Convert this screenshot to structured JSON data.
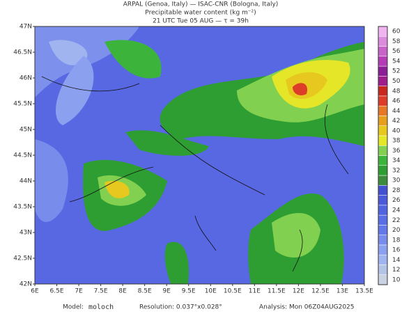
{
  "header": {
    "line1": "ARPAL (Genoa, Italy)  —  ISAC-CNR (Bologna, Italy)",
    "line2": "Precipitable water content (kg m⁻²)",
    "line3": "21 UTC Tue 05 AUG  —  τ = 39h"
  },
  "map": {
    "lat_ticks": [
      "42N",
      "42.5N",
      "43N",
      "43.5N",
      "44N",
      "44.5N",
      "45N",
      "45.5N",
      "46N",
      "46.5N",
      "47N"
    ],
    "lon_ticks": [
      "6E",
      "6.5E",
      "7E",
      "7.5E",
      "8E",
      "8.5E",
      "9E",
      "9.5E",
      "10E",
      "10.5E",
      "11E",
      "11.5E",
      "12E",
      "12.5E",
      "13E",
      "13.5E"
    ]
  },
  "colorbar": {
    "levels": [
      10,
      12,
      14,
      16,
      18,
      20,
      22,
      24,
      26,
      28,
      30,
      32,
      34,
      36,
      38,
      40,
      42,
      44,
      46,
      48,
      50,
      52,
      54,
      56,
      58,
      60
    ],
    "colors": [
      "#c8d2e0",
      "#b4c4e6",
      "#a0b4f0",
      "#8ca0f0",
      "#788cec",
      "#6478e8",
      "#5a6ee6",
      "#5064e0",
      "#4a5ad8",
      "#4450d0",
      "#3c8c3c",
      "#2e9e32",
      "#3cb43c",
      "#82d050",
      "#e6e628",
      "#e6c81e",
      "#e6a01e",
      "#e67828",
      "#dc3c28",
      "#c8281e",
      "#a01e8c",
      "#8c1e96",
      "#b43cb4",
      "#c864c8",
      "#dc8cdc",
      "#f0b4f0"
    ]
  },
  "footer": {
    "model_label": "Model:",
    "model": "moloch",
    "resolution": "Resolution: 0.037°x0.028°",
    "analysis": "Analysis: Mon 06Z04AUG2025"
  }
}
